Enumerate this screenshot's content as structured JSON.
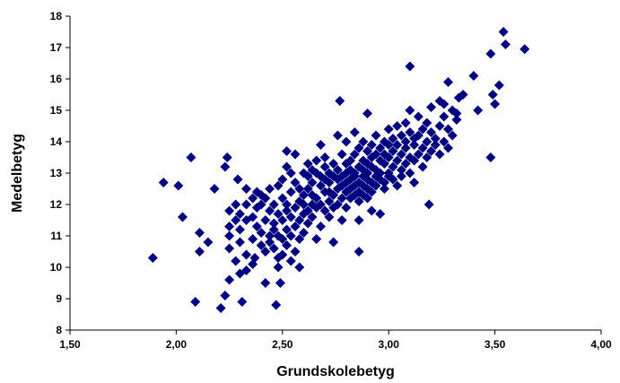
{
  "chart_data": {
    "type": "scatter",
    "xlabel": "Grundskolebetyg",
    "ylabel": "Medelbetyg",
    "color": "#000080",
    "xlim": [
      1.5,
      4.0
    ],
    "xticks": [
      {
        "value": 1.5,
        "label": "1,50"
      },
      {
        "value": 2.0,
        "label": "2,00"
      },
      {
        "value": 2.5,
        "label": "2,50"
      },
      {
        "value": 3.0,
        "label": "3,00"
      },
      {
        "value": 3.5,
        "label": "3,50"
      },
      {
        "value": 4.0,
        "label": "4,00"
      }
    ],
    "ylim": [
      8,
      18
    ],
    "yticks": [
      8,
      9,
      10,
      11,
      12,
      13,
      14,
      15,
      16,
      17,
      18
    ],
    "grid": false,
    "x": [
      1.89,
      1.94,
      2.01,
      2.03,
      2.07,
      2.09,
      2.11,
      2.11,
      2.18,
      2.15,
      2.21,
      2.23,
      2.24,
      2.23,
      2.25,
      2.29,
      2.31,
      2.33,
      2.37,
      2.42,
      2.47,
      2.49,
      2.77,
      2.86,
      2.9,
      3.1,
      3.19,
      3.28,
      3.4,
      3.48,
      3.48,
      3.54,
      3.55,
      3.64,
      3.49,
      3.52,
      3.42,
      3.5,
      3.33,
      3.26,
      2.25,
      2.25,
      2.25,
      2.25,
      2.28,
      2.28,
      2.28,
      2.3,
      2.3,
      2.3,
      2.3,
      2.33,
      2.33,
      2.33,
      2.33,
      2.36,
      2.36,
      2.36,
      2.36,
      2.38,
      2.38,
      2.38,
      2.4,
      2.4,
      2.4,
      2.4,
      2.42,
      2.42,
      2.42,
      2.44,
      2.44,
      2.44,
      2.44,
      2.46,
      2.46,
      2.46,
      2.46,
      2.48,
      2.48,
      2.48,
      2.48,
      2.48,
      2.5,
      2.5,
      2.5,
      2.5,
      2.5,
      2.52,
      2.52,
      2.52,
      2.52,
      2.52,
      2.52,
      2.54,
      2.54,
      2.54,
      2.54,
      2.54,
      2.56,
      2.56,
      2.56,
      2.56,
      2.56,
      2.58,
      2.58,
      2.58,
      2.58,
      2.58,
      2.6,
      2.6,
      2.6,
      2.6,
      2.6,
      2.62,
      2.62,
      2.62,
      2.62,
      2.62,
      2.64,
      2.64,
      2.64,
      2.64,
      2.64,
      2.66,
      2.66,
      2.66,
      2.66,
      2.66,
      2.68,
      2.68,
      2.68,
      2.68,
      2.68,
      2.7,
      2.7,
      2.7,
      2.7,
      2.7,
      2.72,
      2.72,
      2.72,
      2.72,
      2.72,
      2.74,
      2.74,
      2.74,
      2.74,
      2.74,
      2.76,
      2.76,
      2.76,
      2.76,
      2.76,
      2.78,
      2.78,
      2.78,
      2.78,
      2.78,
      2.8,
      2.8,
      2.8,
      2.8,
      2.8,
      2.8,
      2.82,
      2.82,
      2.82,
      2.82,
      2.82,
      2.84,
      2.84,
      2.84,
      2.84,
      2.84,
      2.84,
      2.86,
      2.86,
      2.86,
      2.86,
      2.86,
      2.86,
      2.88,
      2.88,
      2.88,
      2.88,
      2.88,
      2.88,
      2.9,
      2.9,
      2.9,
      2.9,
      2.9,
      2.9,
      2.92,
      2.92,
      2.92,
      2.92,
      2.92,
      2.92,
      2.94,
      2.94,
      2.94,
      2.94,
      2.94,
      2.96,
      2.96,
      2.96,
      2.96,
      2.96,
      2.98,
      2.98,
      2.98,
      2.98,
      2.98,
      3.0,
      3.0,
      3.0,
      3.0,
      3.0,
      3.02,
      3.02,
      3.02,
      3.02,
      3.04,
      3.04,
      3.04,
      3.04,
      3.06,
      3.06,
      3.06,
      3.06,
      3.08,
      3.08,
      3.08,
      3.08,
      3.1,
      3.1,
      3.1,
      3.1,
      3.12,
      3.12,
      3.12,
      3.12,
      3.14,
      3.14,
      3.14,
      3.16,
      3.16,
      3.16,
      3.18,
      3.18,
      3.18,
      3.2,
      3.2,
      3.2,
      3.22,
      3.22,
      3.24,
      3.24,
      3.24,
      3.26,
      3.26,
      3.28,
      3.28,
      3.3,
      3.3,
      3.32,
      3.32,
      3.35
    ],
    "values": [
      10.3,
      12.7,
      12.6,
      11.6,
      13.5,
      8.9,
      11.1,
      10.5,
      12.5,
      10.8,
      8.7,
      13.2,
      13.5,
      9.1,
      9.6,
      12.8,
      8.9,
      12.5,
      10.3,
      9.5,
      8.8,
      9.5,
      15.3,
      10.5,
      14.9,
      16.4,
      12.0,
      15.9,
      16.1,
      13.5,
      16.8,
      17.5,
      17.1,
      16.95,
      15.5,
      15.8,
      15.0,
      15.2,
      15.4,
      15.2,
      11.0,
      11.8,
      10.6,
      11.3,
      10.2,
      12.0,
      11.5,
      10.8,
      11.2,
      9.8,
      11.7,
      10.4,
      11.5,
      12.0,
      9.9,
      10.9,
      11.6,
      12.2,
      10.1,
      11.3,
      11.9,
      12.4,
      10.7,
      11.1,
      12.3,
      12.0,
      11.5,
      10.5,
      12.2,
      11.0,
      11.8,
      10.8,
      12.5,
      10.6,
      11.4,
      12.0,
      11.2,
      10.3,
      11.7,
      12.6,
      11.0,
      10.0,
      10.9,
      11.5,
      12.2,
      12.8,
      10.4,
      11.2,
      12.0,
      13.2,
      10.7,
      11.8,
      13.7,
      10.2,
      11.0,
      12.4,
      11.6,
      13.0,
      10.5,
      11.9,
      12.7,
      11.3,
      13.6,
      10.9,
      12.1,
      12.5,
      11.5,
      10.0,
      11.7,
      12.3,
      13.0,
      12.0,
      11.1,
      12.5,
      11.8,
      13.3,
      12.9,
      11.4,
      12.0,
      12.7,
      13.1,
      11.6,
      12.3,
      12.2,
      13.0,
      13.4,
      11.9,
      10.9,
      12.6,
      12.0,
      13.9,
      12.9,
      11.3,
      12.4,
      13.2,
      11.8,
      12.8,
      13.5,
      12.1,
      12.7,
      13.0,
      11.6,
      12.4,
      12.9,
      12.3,
      13.3,
      11.9,
      10.8,
      12.5,
      13.1,
      12.0,
      14.2,
      12.8,
      12.2,
      12.9,
      13.6,
      12.6,
      11.5,
      12.4,
      13.0,
      13.3,
      12.7,
      11.9,
      14.0,
      12.8,
      13.4,
      12.2,
      13.1,
      12.5,
      12.6,
      13.0,
      12.3,
      13.6,
      14.3,
      12.9,
      13.2,
      12.7,
      12.4,
      13.8,
      11.5,
      12.1,
      12.9,
      13.4,
      12.6,
      13.1,
      12.3,
      14.0,
      13.0,
      12.5,
      13.7,
      12.8,
      13.3,
      12.2,
      12.7,
      13.2,
      13.9,
      12.4,
      13.5,
      11.8,
      13.1,
      12.9,
      13.6,
      12.6,
      14.2,
      13.4,
      12.8,
      13.0,
      13.8,
      11.7,
      13.3,
      12.7,
      14.0,
      13.6,
      12.5,
      13.5,
      13.0,
      13.9,
      12.9,
      14.4,
      13.7,
      13.2,
      12.8,
      14.1,
      13.4,
      13.9,
      12.6,
      14.5,
      13.6,
      13.1,
      14.2,
      12.9,
      13.8,
      14.0,
      13.3,
      14.6,
      13.5,
      14.3,
      13.0,
      15.0,
      13.9,
      14.1,
      13.4,
      12.7,
      14.2,
      13.6,
      14.8,
      13.8,
      14.4,
      13.2,
      14.0,
      13.5,
      14.6,
      14.3,
      13.7,
      15.1,
      14.1,
      13.9,
      14.5,
      13.6,
      15.3,
      14.0,
      14.8,
      13.8,
      14.4,
      14.2,
      15.0,
      14.7,
      14.9,
      15.5
    ]
  }
}
